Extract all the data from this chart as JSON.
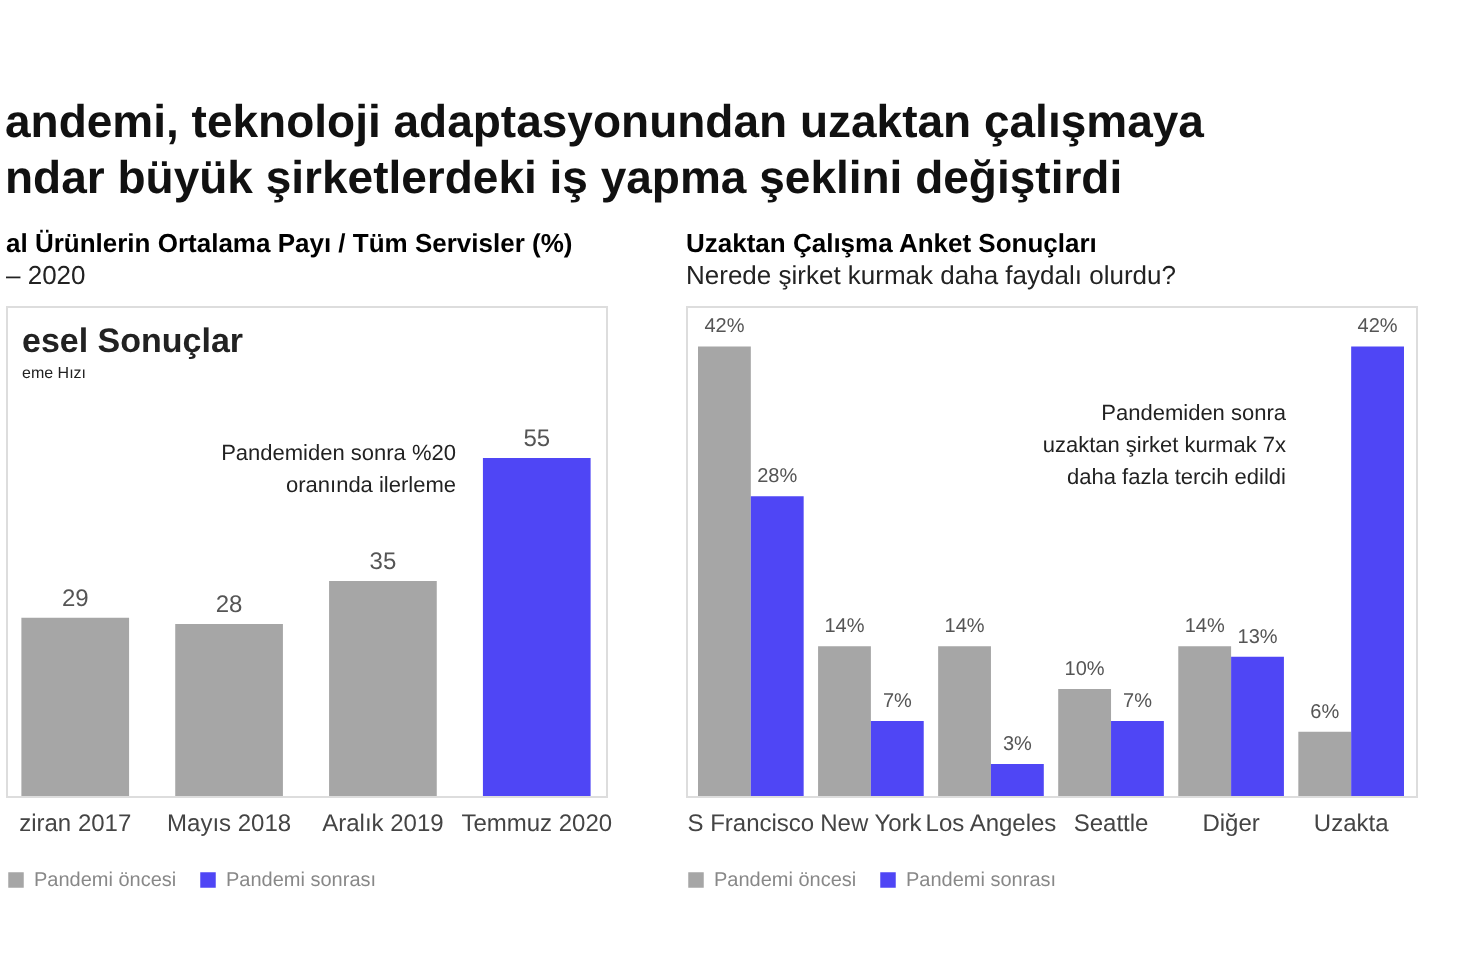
{
  "chart_data": [
    {
      "type": "bar",
      "title": "andemi, teknoloji adaptasyonundan uzaktan çalışmaya\nndar büyük şirketlerdeki iş yapma şeklini değiştirdi",
      "subtitle": "al Ürünlerin Ortalama Payı / Tüm Servisler (%)\n– 2020",
      "categories": [
        "ziran 2017",
        "Mayıs 2018",
        "Aralık 2019",
        "Temmuz 2020"
      ],
      "stacked": true,
      "series": [
        {
          "name": "Pandemi öncesi",
          "color": "#a6a6a6",
          "values": [
            29,
            28,
            35,
            null
          ]
        },
        {
          "name": "Pandemi sonrası",
          "color": "#4f46f5",
          "values": [
            null,
            null,
            null,
            55
          ]
        }
      ],
      "data_labels": true,
      "legend": "bottom",
      "grid": false,
      "annotations": [
        "esel Sonuçlar",
        "eme Hızı",
        "Pandemiden sonra %20\noranında ilerleme"
      ]
    },
    {
      "type": "bar",
      "title": "Uzaktan Çalışma Anket Sonuçları",
      "subtitle": "Nerede şirket kurmak daha faydalı olurdu?",
      "categories": [
        "S Francisco",
        "New York",
        "Los Angeles",
        "Seattle",
        "Diğer",
        "Uzakta"
      ],
      "series": [
        {
          "name": "Pandemi öncesi",
          "color": "#a6a6a6",
          "values": [
            42,
            14,
            14,
            10,
            14,
            6
          ],
          "value_labels": [
            "42%",
            "14%",
            "14%",
            "10%",
            "14%",
            "6%"
          ]
        },
        {
          "name": "Pandemi sonrası",
          "color": "#4f46f5",
          "values": [
            28,
            7,
            3,
            7,
            13,
            42
          ],
          "value_labels": [
            "28%",
            "7%",
            "3%",
            "7%",
            "13%",
            "42%"
          ]
        }
      ],
      "legend": "bottom",
      "grid": false,
      "annotations": [
        "Pandemiden sonra\nuzaktan şirket kurmak 7x\ndaha fazla tercih edildi"
      ]
    }
  ]
}
